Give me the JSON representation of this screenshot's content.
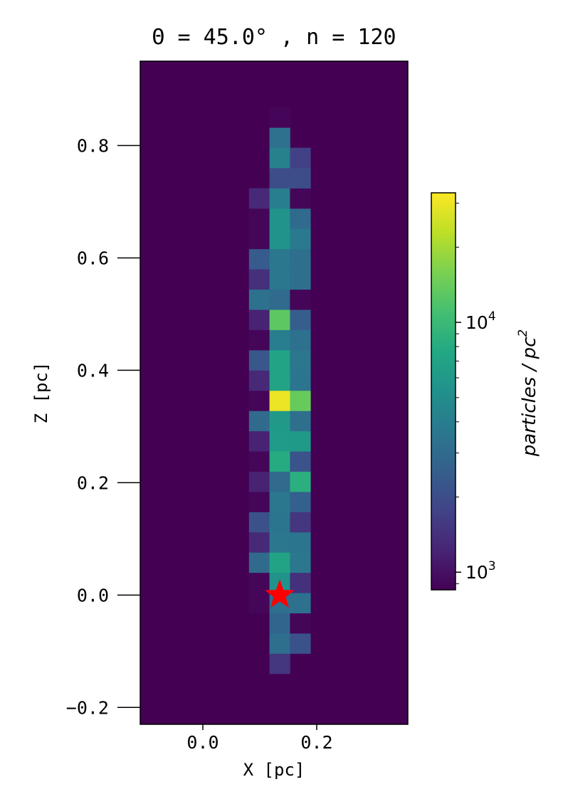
{
  "chart_data": {
    "type": "heatmap",
    "title": "Θ = 45.0° , n = 120",
    "xlabel": "X [pc]",
    "ylabel": "Z [pc]",
    "xlim": [
      -0.11,
      0.36
    ],
    "ylim": [
      -0.23,
      0.95
    ],
    "x_ticks": [
      0.0,
      0.2
    ],
    "x_tick_labels": [
      "0.0",
      "0.2"
    ],
    "y_ticks": [
      -0.2,
      0.0,
      0.2,
      0.4,
      0.6,
      0.8
    ],
    "y_tick_labels": [
      "−0.2",
      "0.0",
      "0.2",
      "0.4",
      "0.6",
      "0.8"
    ],
    "bin_size": 0.036,
    "x_bin_centers": [
      0.099,
      0.135,
      0.171
    ],
    "y_bin_start": -0.14,
    "cell_values_bottom_to_top": [
      [
        null,
        1500,
        null
      ],
      [
        null,
        3200,
        2100
      ],
      [
        null,
        2800,
        900
      ],
      [
        900,
        3200,
        3300
      ],
      [
        900,
        5500,
        1400
      ],
      [
        3000,
        7000,
        3600
      ],
      [
        1300,
        3600,
        3500
      ],
      [
        2100,
        3500,
        1500
      ],
      [
        900,
        3600,
        2600
      ],
      [
        1200,
        3000,
        8500
      ],
      [
        900,
        8000,
        2200
      ],
      [
        1200,
        6200,
        6000
      ],
      [
        3000,
        6000,
        3200
      ],
      [
        900,
        30000,
        14000
      ],
      [
        1300,
        7000,
        3500
      ],
      [
        2300,
        7000,
        3600
      ],
      [
        900,
        4000,
        3300
      ],
      [
        1200,
        13000,
        2500
      ],
      [
        3300,
        3000,
        900
      ],
      [
        1400,
        3600,
        3200
      ],
      [
        2400,
        3600,
        3200
      ],
      [
        900,
        5500,
        3800
      ],
      [
        900,
        5500,
        3000
      ],
      [
        1300,
        4000,
        900
      ],
      [
        null,
        2000,
        2000
      ],
      [
        null,
        4200,
        1700
      ],
      [
        null,
        3300,
        null
      ],
      [
        null,
        900,
        null
      ]
    ],
    "colormap": "viridis",
    "color_scale": "log",
    "colorbar": {
      "label": "particles / pc",
      "label_superscript": "2",
      "vmin": 850,
      "vmax": 33000,
      "tick_values": [
        1000,
        10000
      ],
      "tick_bases": [
        "10",
        "10"
      ],
      "tick_exponents": [
        "3",
        "4"
      ]
    },
    "background_value": 850,
    "marker": {
      "shape": "star",
      "color": "#ff0000",
      "x": 0.135,
      "y": 0.0
    }
  }
}
